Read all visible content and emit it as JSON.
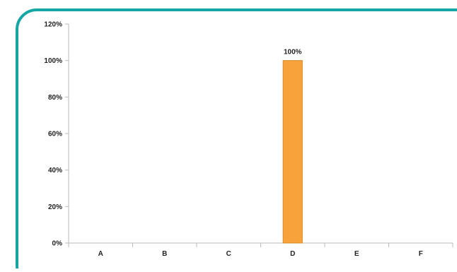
{
  "chart_data": {
    "type": "bar",
    "categories": [
      "A",
      "B",
      "C",
      "D",
      "E",
      "F"
    ],
    "values": [
      0,
      0,
      0,
      100,
      0,
      0
    ],
    "value_labels": [
      "",
      "",
      "",
      "100%",
      "",
      ""
    ],
    "yticks": [
      "0%",
      "20%",
      "40%",
      "60%",
      "80%",
      "100%",
      "120%"
    ],
    "ylim": [
      0,
      120
    ],
    "title": "",
    "xlabel": "",
    "ylabel": "",
    "grid": false,
    "legend": "none"
  },
  "colors": {
    "frame_border": "#16A6A6",
    "bar_fill": "#F7A23A",
    "bar_edge": "#D98A26",
    "axis": "#BBBBBB",
    "text": "#222222"
  }
}
